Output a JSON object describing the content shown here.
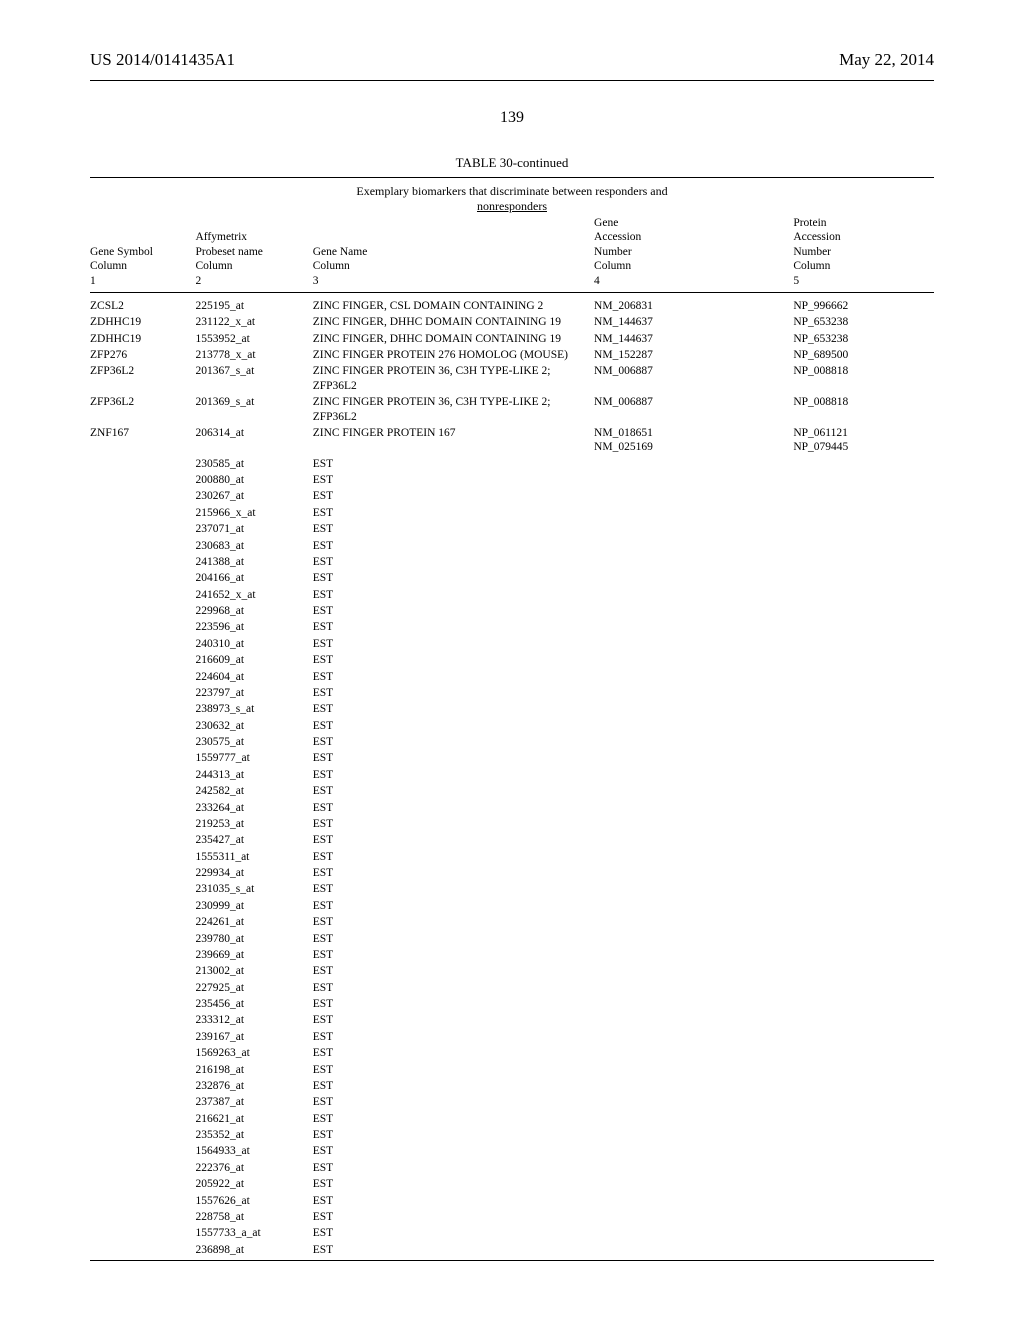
{
  "header": {
    "left": "US 2014/0141435A1",
    "right": "May 22, 2014"
  },
  "page_number": "139",
  "table": {
    "title": "TABLE 30-continued",
    "caption_line1": "Exemplary biomarkers that discriminate between responders and",
    "caption_line2": "nonresponders",
    "columns": [
      {
        "l1": "Gene Symbol",
        "l2": "Column",
        "l3": "1"
      },
      {
        "l1": "Affymetrix",
        "l2": "Probeset name",
        "l3": "Column",
        "l4": "2"
      },
      {
        "l1": "Gene Name",
        "l2": "Column",
        "l3": "3"
      },
      {
        "l1": "Gene",
        "l2": "Accession",
        "l3": "Number",
        "l4": "Column",
        "l5": "4"
      },
      {
        "l1": "Protein",
        "l2": "Accession",
        "l3": "Number",
        "l4": "Column",
        "l5": "5"
      }
    ],
    "rows": [
      {
        "sym": "ZCSL2",
        "probe": "225195_at",
        "name": "ZINC FINGER, CSL DOMAIN CONTAINING 2",
        "gacc": "NM_206831",
        "pacc": "NP_996662"
      },
      {
        "sym": "ZDHHC19",
        "probe": "231122_x_at",
        "name": "ZINC FINGER, DHHC DOMAIN CONTAINING 19",
        "gacc": "NM_144637",
        "pacc": "NP_653238"
      },
      {
        "sym": "ZDHHC19",
        "probe": "1553952_at",
        "name": "ZINC FINGER, DHHC DOMAIN CONTAINING 19",
        "gacc": "NM_144637",
        "pacc": "NP_653238"
      },
      {
        "sym": "ZFP276",
        "probe": "213778_x_at",
        "name": "ZINC FINGER PROTEIN 276 HOMOLOG (MOUSE)",
        "gacc": "NM_152287",
        "pacc": "NP_689500"
      },
      {
        "sym": "ZFP36L2",
        "probe": "201367_s_at",
        "name": "ZINC FINGER PROTEIN 36, C3H TYPE-LIKE 2; ZFP36L2",
        "gacc": "NM_006887",
        "pacc": "NP_008818"
      },
      {
        "sym": "ZFP36L2",
        "probe": "201369_s_at",
        "name": "ZINC FINGER PROTEIN 36, C3H TYPE-LIKE 2; ZFP36L2",
        "gacc": "NM_006887",
        "pacc": "NP_008818"
      },
      {
        "sym": "ZNF167",
        "probe": "206314_at",
        "name": "ZINC FINGER PROTEIN 167",
        "gacc": "NM_018651\nNM_025169",
        "pacc": "NP_061121\nNP_079445"
      }
    ],
    "est_rows": [
      "230585_at",
      "200880_at",
      "230267_at",
      "215966_x_at",
      "237071_at",
      "230683_at",
      "241388_at",
      "204166_at",
      "241652_x_at",
      "229968_at",
      "223596_at",
      "240310_at",
      "216609_at",
      "224604_at",
      "223797_at",
      "238973_s_at",
      "230632_at",
      "230575_at",
      "1559777_at",
      "244313_at",
      "242582_at",
      "233264_at",
      "219253_at",
      "235427_at",
      "1555311_at",
      "229934_at",
      "231035_s_at",
      "230999_at",
      "224261_at",
      "239780_at",
      "239669_at",
      "213002_at",
      "227925_at",
      "235456_at",
      "233312_at",
      "239167_at",
      "1569263_at",
      "216198_at",
      "232876_at",
      "237387_at",
      "216621_at",
      "235352_at",
      "1564933_at",
      "222376_at",
      "205922_at",
      "1557626_at",
      "228758_at",
      "1557733_a_at",
      "236898_at"
    ],
    "est_label": "EST"
  }
}
